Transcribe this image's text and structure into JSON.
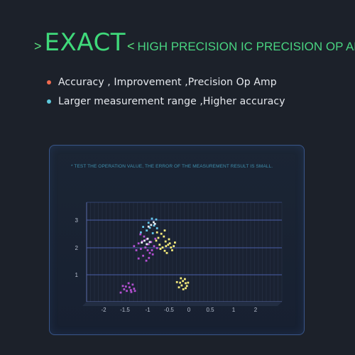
{
  "header": {
    "chevron_left": ">",
    "brand": "EXACT",
    "chevron_right": "<",
    "tagline": "HIGH PRECISION IC PRECISION OP AMP"
  },
  "bullets": [
    {
      "text": "Accuracy , Improvement ,Precision Op Amp",
      "dot_color": "#f06a4f"
    },
    {
      "text": "Larger measurement range ,Higher accuracy",
      "dot_color": "#5ec9dc"
    }
  ],
  "panel": {
    "note": "* TEST THE OPERATION VALUE, THE ERROR OF THE MEASUREMENT RESULT IS SMALL."
  },
  "chart_data": {
    "type": "scatter",
    "x_ticks": [
      "-2",
      "-1.5",
      "-1",
      "-0.5",
      "0",
      "0.5",
      "1",
      "2"
    ],
    "y_ticks": [
      "3",
      "2",
      "1"
    ],
    "series": [
      {
        "color": "#b24fcf",
        "points": [
          [
            -1.52,
            0.48
          ],
          [
            -1.46,
            0.42
          ],
          [
            -1.4,
            0.55
          ],
          [
            -1.36,
            0.38
          ],
          [
            -1.55,
            0.6
          ],
          [
            -1.3,
            0.5
          ],
          [
            -1.42,
            0.7
          ],
          [
            -1.6,
            0.36
          ],
          [
            -1.33,
            0.65
          ],
          [
            -1.48,
            0.58
          ],
          [
            -1.37,
            0.45
          ],
          [
            -1.28,
            0.42
          ],
          [
            -1.05,
            2.0
          ],
          [
            -0.98,
            2.12
          ],
          [
            -1.12,
            2.22
          ],
          [
            -0.9,
            1.9
          ],
          [
            -1.02,
            2.3
          ],
          [
            -0.85,
            2.05
          ],
          [
            -1.15,
            1.95
          ],
          [
            -0.95,
            1.8
          ],
          [
            -1.08,
            2.4
          ],
          [
            -0.92,
            2.2
          ],
          [
            -1.2,
            2.15
          ],
          [
            -0.88,
            1.75
          ],
          [
            -1.0,
            1.9
          ],
          [
            -1.1,
            1.7
          ],
          [
            -0.97,
            1.62
          ],
          [
            -1.25,
            1.9
          ],
          [
            -0.82,
            2.32
          ],
          [
            -1.03,
            1.52
          ],
          [
            -1.2,
            1.6
          ],
          [
            -1.3,
            2.05
          ],
          [
            -0.78,
            1.98
          ],
          [
            -1.16,
            2.48
          ]
        ]
      },
      {
        "color": "#f3ea7b",
        "points": [
          [
            -0.72,
            2.1
          ],
          [
            -0.65,
            2.0
          ],
          [
            -0.58,
            2.22
          ],
          [
            -0.8,
            2.25
          ],
          [
            -0.6,
            1.88
          ],
          [
            -0.52,
            2.1
          ],
          [
            -0.7,
            1.95
          ],
          [
            -0.45,
            2.0
          ],
          [
            -0.55,
            1.8
          ],
          [
            -0.48,
            2.15
          ],
          [
            -0.62,
            2.4
          ],
          [
            -0.38,
            2.05
          ],
          [
            -0.75,
            2.35
          ],
          [
            -0.42,
            1.9
          ],
          [
            -0.68,
            2.5
          ],
          [
            -0.57,
            2.05
          ],
          [
            -0.5,
            2.3
          ],
          [
            -0.35,
            2.18
          ],
          [
            -0.6,
            2.62
          ],
          [
            -0.78,
            2.55
          ],
          [
            -0.22,
            0.72
          ],
          [
            -0.15,
            0.78
          ],
          [
            -0.08,
            0.7
          ],
          [
            -0.18,
            0.62
          ],
          [
            -0.1,
            0.85
          ],
          [
            -0.25,
            0.55
          ],
          [
            -0.05,
            0.6
          ],
          [
            -0.14,
            0.48
          ],
          [
            -0.3,
            0.74
          ],
          [
            -0.02,
            0.72
          ],
          [
            -0.2,
            0.88
          ],
          [
            -0.08,
            0.52
          ]
        ]
      },
      {
        "color": "#64c6ea",
        "points": [
          [
            -1.1,
            2.75
          ],
          [
            -0.98,
            2.9
          ],
          [
            -0.85,
            2.8
          ],
          [
            -1.02,
            2.62
          ],
          [
            -0.9,
            3.05
          ],
          [
            -0.78,
            2.7
          ],
          [
            -1.15,
            2.55
          ],
          [
            -0.88,
            2.52
          ],
          [
            -0.8,
            3.02
          ],
          [
            -0.95,
            2.72
          ]
        ]
      },
      {
        "color": "#e7ecf2",
        "points": [
          [
            -0.92,
            2.82
          ],
          [
            -0.86,
            2.92
          ],
          [
            -0.98,
            2.76
          ],
          [
            -0.83,
            2.86
          ],
          [
            -1.07,
            2.25
          ],
          [
            -1.0,
            2.32
          ],
          [
            -1.13,
            2.18
          ],
          [
            -1.02,
            2.12
          ],
          [
            -0.95,
            2.2
          ]
        ]
      }
    ]
  }
}
